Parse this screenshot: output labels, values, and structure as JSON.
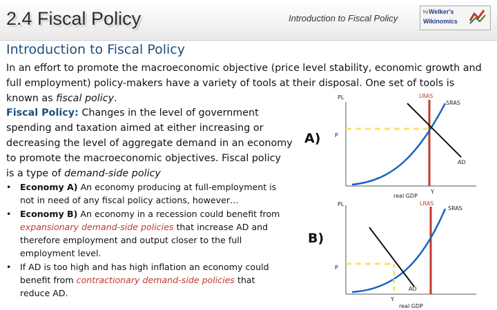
{
  "header": {
    "title": "2.4 Fiscal Policy",
    "section": "Introduction to Fiscal Policy",
    "logo": {
      "by": "by",
      "line1": "Welker's",
      "line2": "Wikinomics"
    }
  },
  "subtitle": "Introduction to Fiscal Policy",
  "intro": {
    "line1": "In an effort to promote the macroeconomic objective (price level stability, economic growth and",
    "line2": "full employment) policy-makers have a variety of tools at their disposal. One set of tools is",
    "line3_prefix": "known as ",
    "line3_italic": "fiscal policy",
    "line3_suffix": "."
  },
  "definition": {
    "term": "Fiscal Policy:",
    "line1": " Changes in the level of government",
    "line2": "spending and taxation aimed at either increasing or",
    "line3": "decreasing the level of aggregate demand in an economy",
    "line4": "to promote the macroeconomic objectives. Fiscal policy",
    "line5_prefix": "is a type of ",
    "line5_italic": "demand-side policy"
  },
  "bullets": [
    {
      "lead": "Economy A)",
      "lines": [
        " An economy producing at full-employment is",
        "not in need of any fiscal policy actions, however…"
      ]
    },
    {
      "lead": "Economy B)",
      "lines": [
        " An economy in a recession could benefit from"
      ],
      "red": "expansionary demand-side policies",
      "after": " that increase AD and",
      "rest": [
        "therefore employment and output closer to the full",
        "employment level."
      ]
    },
    {
      "lead": "",
      "lines": [
        "If AD is too high and has high inflation an economy could"
      ],
      "pre2": "benefit from ",
      "red": "contractionary demand-side policies",
      "after": " that",
      "rest": [
        "reduce AD."
      ]
    }
  ],
  "graphs": {
    "a": {
      "letter": "A)",
      "pl": "PL",
      "lras": "LRAS",
      "sras": "SRAS",
      "p": "P",
      "ad": "AD",
      "xlabel": "real GDP",
      "y": "Y"
    },
    "b": {
      "letter": "B)",
      "pl": "PL",
      "lras": "LRAS",
      "sras": "SRAS",
      "p": "P",
      "ad": "AD",
      "xlabel": "real GDP",
      "y1": "Y"
    }
  },
  "colors": {
    "title_blue": "#1f4e79",
    "lras_red": "#c0392b",
    "dashed_yellow": "#f5e36a",
    "sras_blue": "#1565c0"
  }
}
